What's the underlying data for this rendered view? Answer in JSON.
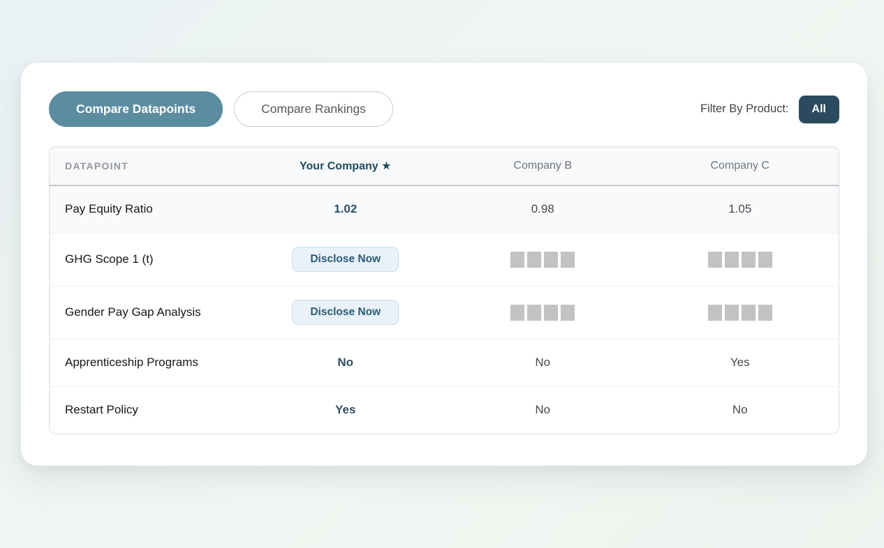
{
  "colors": {
    "active_tab_bg": "#5b8ca0",
    "dark_slate": "#2b4a5e",
    "primary_value_text": "#2e4f63",
    "disclose_btn_bg": "#e9f2f9",
    "disclose_btn_text": "#2b5a78",
    "redacted_block": "#c2c2c2",
    "header_row_bg": "#f8f9fa",
    "shaded_row_bg": "#f8fafc"
  },
  "toolbar": {
    "tabs": [
      {
        "label": "Compare Datapoints",
        "active": true
      },
      {
        "label": "Compare Rankings",
        "active": false
      }
    ],
    "filter": {
      "label": "Filter By Product:",
      "value": "All"
    }
  },
  "table": {
    "columns": [
      {
        "label": "DATAPOINT"
      },
      {
        "label": "Your Company ★"
      },
      {
        "label": "Company B"
      },
      {
        "label": "Company C"
      }
    ],
    "rows": [
      {
        "label": "Pay Equity Ratio",
        "shaded": true,
        "tall": false,
        "cells": [
          {
            "kind": "value-primary",
            "text": "1.02"
          },
          {
            "kind": "value",
            "text": "0.98"
          },
          {
            "kind": "value",
            "text": "1.05"
          }
        ]
      },
      {
        "label": "GHG Scope 1 (t)",
        "shaded": false,
        "tall": true,
        "cells": [
          {
            "kind": "button",
            "text": "Disclose Now"
          },
          {
            "kind": "redacted",
            "blocks": 4
          },
          {
            "kind": "redacted",
            "blocks": 4
          }
        ]
      },
      {
        "label": "Gender Pay Gap Analysis",
        "shaded": false,
        "tall": true,
        "cells": [
          {
            "kind": "button",
            "text": "Disclose Now"
          },
          {
            "kind": "redacted",
            "blocks": 4
          },
          {
            "kind": "redacted",
            "blocks": 4
          }
        ]
      },
      {
        "label": "Apprenticeship Programs",
        "shaded": false,
        "tall": false,
        "cells": [
          {
            "kind": "value-primary",
            "text": "No"
          },
          {
            "kind": "value",
            "text": "No"
          },
          {
            "kind": "value",
            "text": "Yes"
          }
        ]
      },
      {
        "label": "Restart Policy",
        "shaded": false,
        "tall": false,
        "cells": [
          {
            "kind": "value-primary",
            "text": "Yes"
          },
          {
            "kind": "value",
            "text": "No"
          },
          {
            "kind": "value",
            "text": "No"
          }
        ]
      }
    ]
  }
}
